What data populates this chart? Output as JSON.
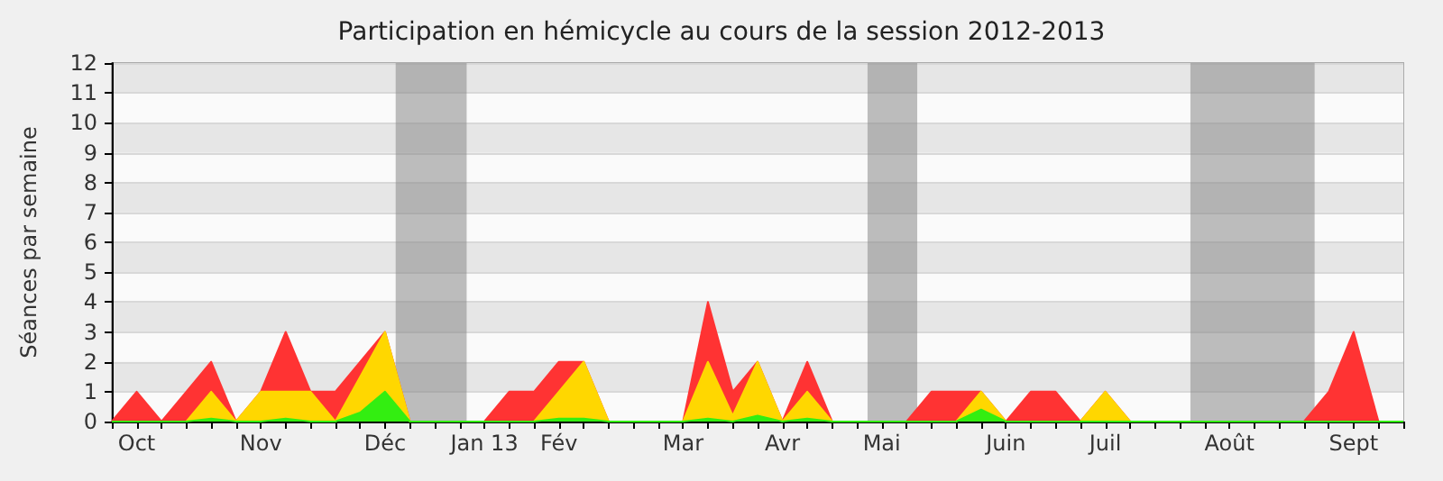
{
  "chart_data": {
    "type": "area",
    "stacked": true,
    "title": "Participation en hémicycle au cours de la session 2012-2013",
    "ylabel": "Séances par semaine",
    "x": [
      "2012-09-24",
      "2012-10-01",
      "2012-10-08",
      "2012-10-15",
      "2012-10-22",
      "2012-10-29",
      "2012-11-05",
      "2012-11-12",
      "2012-11-19",
      "2012-11-26",
      "2012-12-03",
      "2012-12-10",
      "2012-12-17",
      "2012-12-24",
      "2012-12-31",
      "2013-01-07",
      "2013-01-14",
      "2013-01-21",
      "2013-01-28",
      "2013-02-04",
      "2013-02-11",
      "2013-02-18",
      "2013-02-25",
      "2013-03-04",
      "2013-03-11",
      "2013-03-18",
      "2013-03-25",
      "2013-04-01",
      "2013-04-08",
      "2013-04-15",
      "2013-04-22",
      "2013-04-29",
      "2013-05-06",
      "2013-05-13",
      "2013-05-20",
      "2013-05-27",
      "2013-06-03",
      "2013-06-10",
      "2013-06-17",
      "2013-06-24",
      "2013-07-01",
      "2013-07-08",
      "2013-07-15",
      "2013-07-22",
      "2013-07-29",
      "2013-08-05",
      "2013-08-12",
      "2013-08-19",
      "2013-08-26",
      "2013-09-02",
      "2013-09-09",
      "2013-09-16",
      "2013-09-23"
    ],
    "series": [
      {
        "color": "#33ee11",
        "values": [
          0,
          0,
          0,
          0,
          0.1,
          0,
          0,
          0.1,
          0,
          0,
          0.3,
          1,
          0,
          0,
          0,
          0,
          0,
          0,
          0.1,
          0.1,
          0,
          0,
          0,
          0,
          0.1,
          0,
          0.2,
          0,
          0.1,
          0,
          0,
          0,
          0,
          0,
          0,
          0.4,
          0,
          0,
          0,
          0,
          0,
          0,
          0,
          0,
          0,
          0,
          0,
          0,
          0,
          0,
          0,
          0,
          0
        ]
      },
      {
        "color": "#ffd700",
        "values": [
          0,
          0,
          0,
          0,
          0.9,
          0,
          1,
          0.9,
          1,
          0,
          1.2,
          2,
          0,
          0,
          0,
          0,
          0,
          0,
          0.9,
          1.9,
          0,
          0,
          0,
          0,
          1.9,
          0.2,
          1.8,
          0,
          0.9,
          0,
          0,
          0,
          0,
          0,
          0,
          0.6,
          0,
          0,
          0,
          0,
          1,
          0,
          0,
          0,
          0,
          0,
          0,
          0,
          0,
          0,
          0,
          0,
          0
        ]
      },
      {
        "color": "#ff3333",
        "values": [
          0,
          1,
          0,
          1,
          1,
          0,
          0,
          2,
          0,
          1,
          0.5,
          0,
          0,
          0,
          0,
          0,
          1,
          1,
          1,
          0,
          0,
          0,
          0,
          0,
          2,
          0.8,
          0,
          0,
          1,
          0,
          0,
          0,
          0,
          1,
          1,
          0,
          0,
          1,
          1,
          0,
          0,
          0,
          0,
          0,
          0,
          0,
          0,
          0,
          0,
          1,
          3,
          0,
          0
        ]
      }
    ],
    "xlim": [
      "2012-09-24",
      "2013-09-23"
    ],
    "xticks": [
      {
        "value": "2012-09-24",
        "label": null
      },
      {
        "value": "2012-10-01",
        "label": "Oct"
      },
      {
        "value": "2012-10-08",
        "label": null
      },
      {
        "value": "2012-10-15",
        "label": null
      },
      {
        "value": "2012-10-22",
        "label": null
      },
      {
        "value": "2012-10-29",
        "label": null
      },
      {
        "value": "2012-11-05",
        "label": "Nov"
      },
      {
        "value": "2012-11-12",
        "label": null
      },
      {
        "value": "2012-11-19",
        "label": null
      },
      {
        "value": "2012-11-26",
        "label": null
      },
      {
        "value": "2012-12-03",
        "label": null
      },
      {
        "value": "2012-12-10",
        "label": "Déc"
      },
      {
        "value": "2012-12-17",
        "label": null
      },
      {
        "value": "2012-12-24",
        "label": null
      },
      {
        "value": "2012-12-31",
        "label": null
      },
      {
        "value": "2013-01-07",
        "label": "Jan 13"
      },
      {
        "value": "2013-01-14",
        "label": null
      },
      {
        "value": "2013-01-21",
        "label": null
      },
      {
        "value": "2013-01-28",
        "label": "Fév"
      },
      {
        "value": "2013-02-04",
        "label": null
      },
      {
        "value": "2013-02-11",
        "label": null
      },
      {
        "value": "2013-02-18",
        "label": null
      },
      {
        "value": "2013-02-25",
        "label": null
      },
      {
        "value": "2013-03-04",
        "label": "Mar"
      },
      {
        "value": "2013-03-11",
        "label": null
      },
      {
        "value": "2013-03-18",
        "label": null
      },
      {
        "value": "2013-03-25",
        "label": null
      },
      {
        "value": "2013-04-01",
        "label": "Avr"
      },
      {
        "value": "2013-04-08",
        "label": null
      },
      {
        "value": "2013-04-15",
        "label": null
      },
      {
        "value": "2013-04-22",
        "label": null
      },
      {
        "value": "2013-04-29",
        "label": "Mai"
      },
      {
        "value": "2013-05-06",
        "label": null
      },
      {
        "value": "2013-05-13",
        "label": null
      },
      {
        "value": "2013-05-20",
        "label": null
      },
      {
        "value": "2013-05-27",
        "label": null
      },
      {
        "value": "2013-06-03",
        "label": "Juin"
      },
      {
        "value": "2013-06-10",
        "label": null
      },
      {
        "value": "2013-06-17",
        "label": null
      },
      {
        "value": "2013-06-24",
        "label": null
      },
      {
        "value": "2013-07-01",
        "label": "Juil"
      },
      {
        "value": "2013-07-08",
        "label": null
      },
      {
        "value": "2013-07-15",
        "label": null
      },
      {
        "value": "2013-07-22",
        "label": null
      },
      {
        "value": "2013-07-29",
        "label": null
      },
      {
        "value": "2013-08-05",
        "label": "Août"
      },
      {
        "value": "2013-08-12",
        "label": null
      },
      {
        "value": "2013-08-19",
        "label": null
      },
      {
        "value": "2013-08-26",
        "label": null
      },
      {
        "value": "2013-09-02",
        "label": null
      },
      {
        "value": "2013-09-09",
        "label": "Sept"
      },
      {
        "value": "2013-09-16",
        "label": null
      },
      {
        "value": "2013-09-23",
        "label": null
      }
    ],
    "ylim": [
      0,
      12
    ],
    "yticks": [
      0,
      1,
      2,
      3,
      4,
      5,
      6,
      7,
      8,
      9,
      10,
      11,
      12
    ],
    "grid": "y",
    "bands": [
      {
        "axis": "x",
        "from": "2012-12-13",
        "to": "2013-01-02",
        "color": "#888888"
      },
      {
        "axis": "x",
        "from": "2013-04-25",
        "to": "2013-05-09",
        "color": "#888888"
      },
      {
        "axis": "x",
        "from": "2013-07-25",
        "to": "2013-08-29",
        "color": "#888888"
      }
    ]
  }
}
